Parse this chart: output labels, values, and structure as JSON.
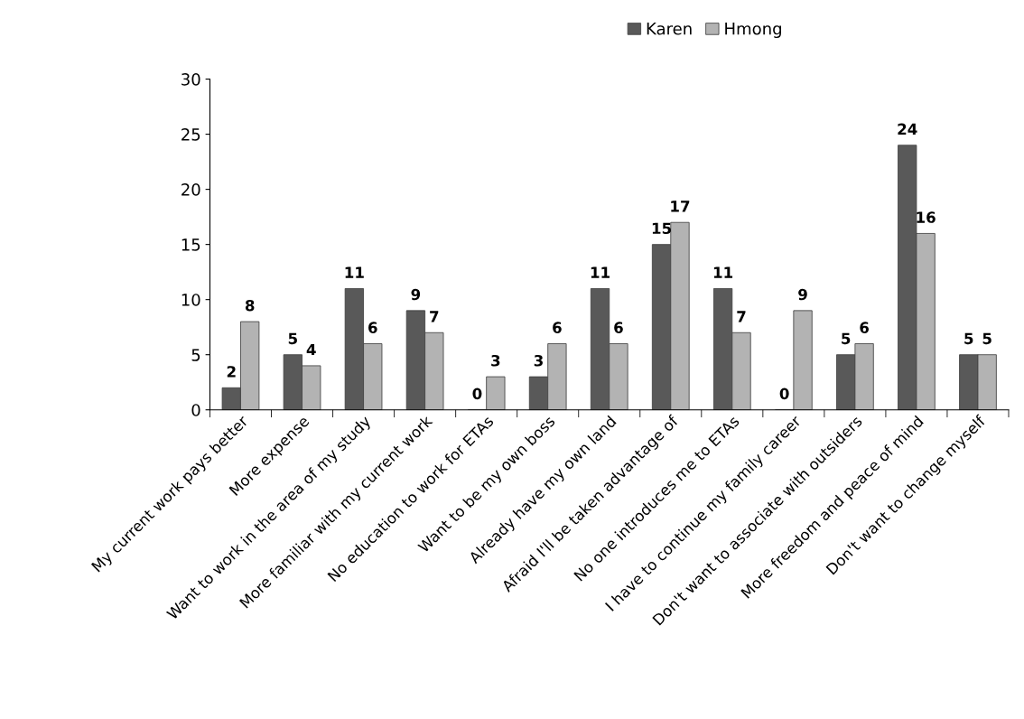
{
  "chart_data": {
    "type": "bar",
    "categories": [
      "My current work pays better",
      "More expense",
      "Want to work in the area of my study",
      "More familiar with my current work",
      "No education to work for ETAs",
      "Want to be my own boss",
      "Already have my own land",
      "Afraid I'll be taken advantage of",
      "No one introduces me to ETAs",
      "I have to continue my family career",
      "Don't want to associate with outsiders",
      "More freedom and peace of mind",
      "Don't want to change myself"
    ],
    "series": [
      {
        "name": "Karen",
        "color": "#595959",
        "values": [
          2,
          5,
          11,
          9,
          0,
          3,
          11,
          15,
          11,
          0,
          5,
          24,
          5
        ]
      },
      {
        "name": "Hmong",
        "color": "#b3b3b3",
        "values": [
          8,
          4,
          6,
          7,
          3,
          6,
          6,
          17,
          7,
          9,
          6,
          16,
          5
        ]
      }
    ],
    "ylim": [
      0,
      30
    ],
    "yticks": [
      0,
      5,
      10,
      15,
      20,
      25,
      30
    ],
    "grid": false,
    "legend": "top",
    "data_labels": true
  }
}
